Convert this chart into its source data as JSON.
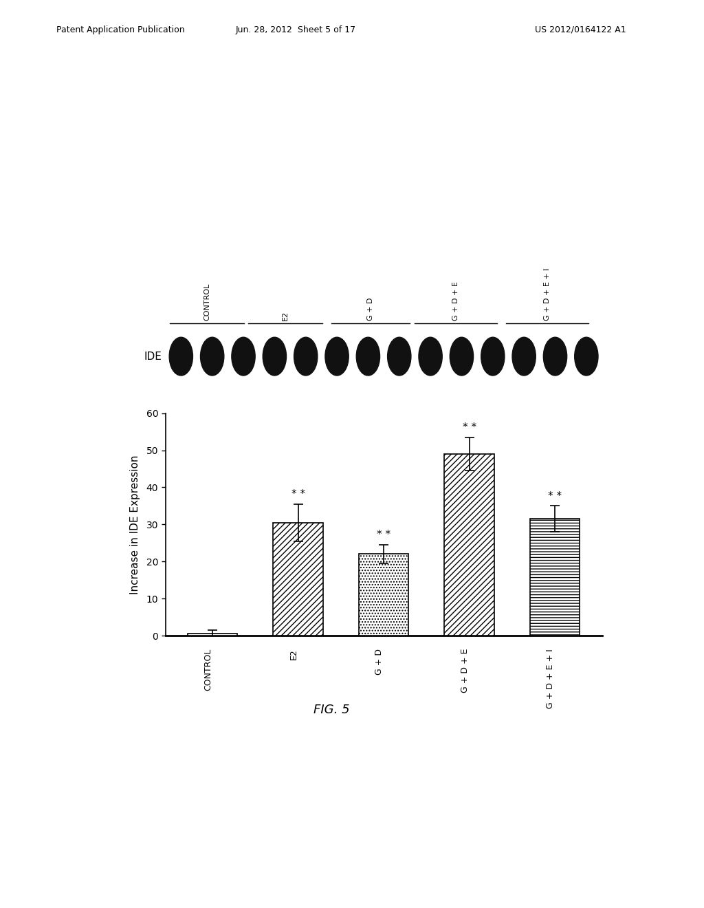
{
  "categories": [
    "CONTROL",
    "E2",
    "G + D",
    "G + D + E",
    "G + D + E + I"
  ],
  "values": [
    0.5,
    30.5,
    22.0,
    49.0,
    31.5
  ],
  "errors": [
    1.0,
    5.0,
    2.5,
    4.5,
    3.5
  ],
  "significance": [
    false,
    true,
    true,
    true,
    true
  ],
  "ylabel": "Increase in IDE Expression",
  "ylim": [
    0,
    60
  ],
  "yticks": [
    0,
    10,
    20,
    30,
    40,
    50,
    60
  ],
  "fig_caption": "FIG. 5",
  "header_parts": [
    "Patent Application Publication",
    "Jun. 28, 2012  Sheet 5 of 17",
    "US 2012/0164122 A1"
  ],
  "background_color": "#ffffff",
  "hatch_patterns": [
    "",
    "////",
    "....",
    "////",
    "----"
  ],
  "ide_label": "IDE",
  "num_blot_bands": 14,
  "blot_bg": "#b0b0b0",
  "band_color": "#111111"
}
